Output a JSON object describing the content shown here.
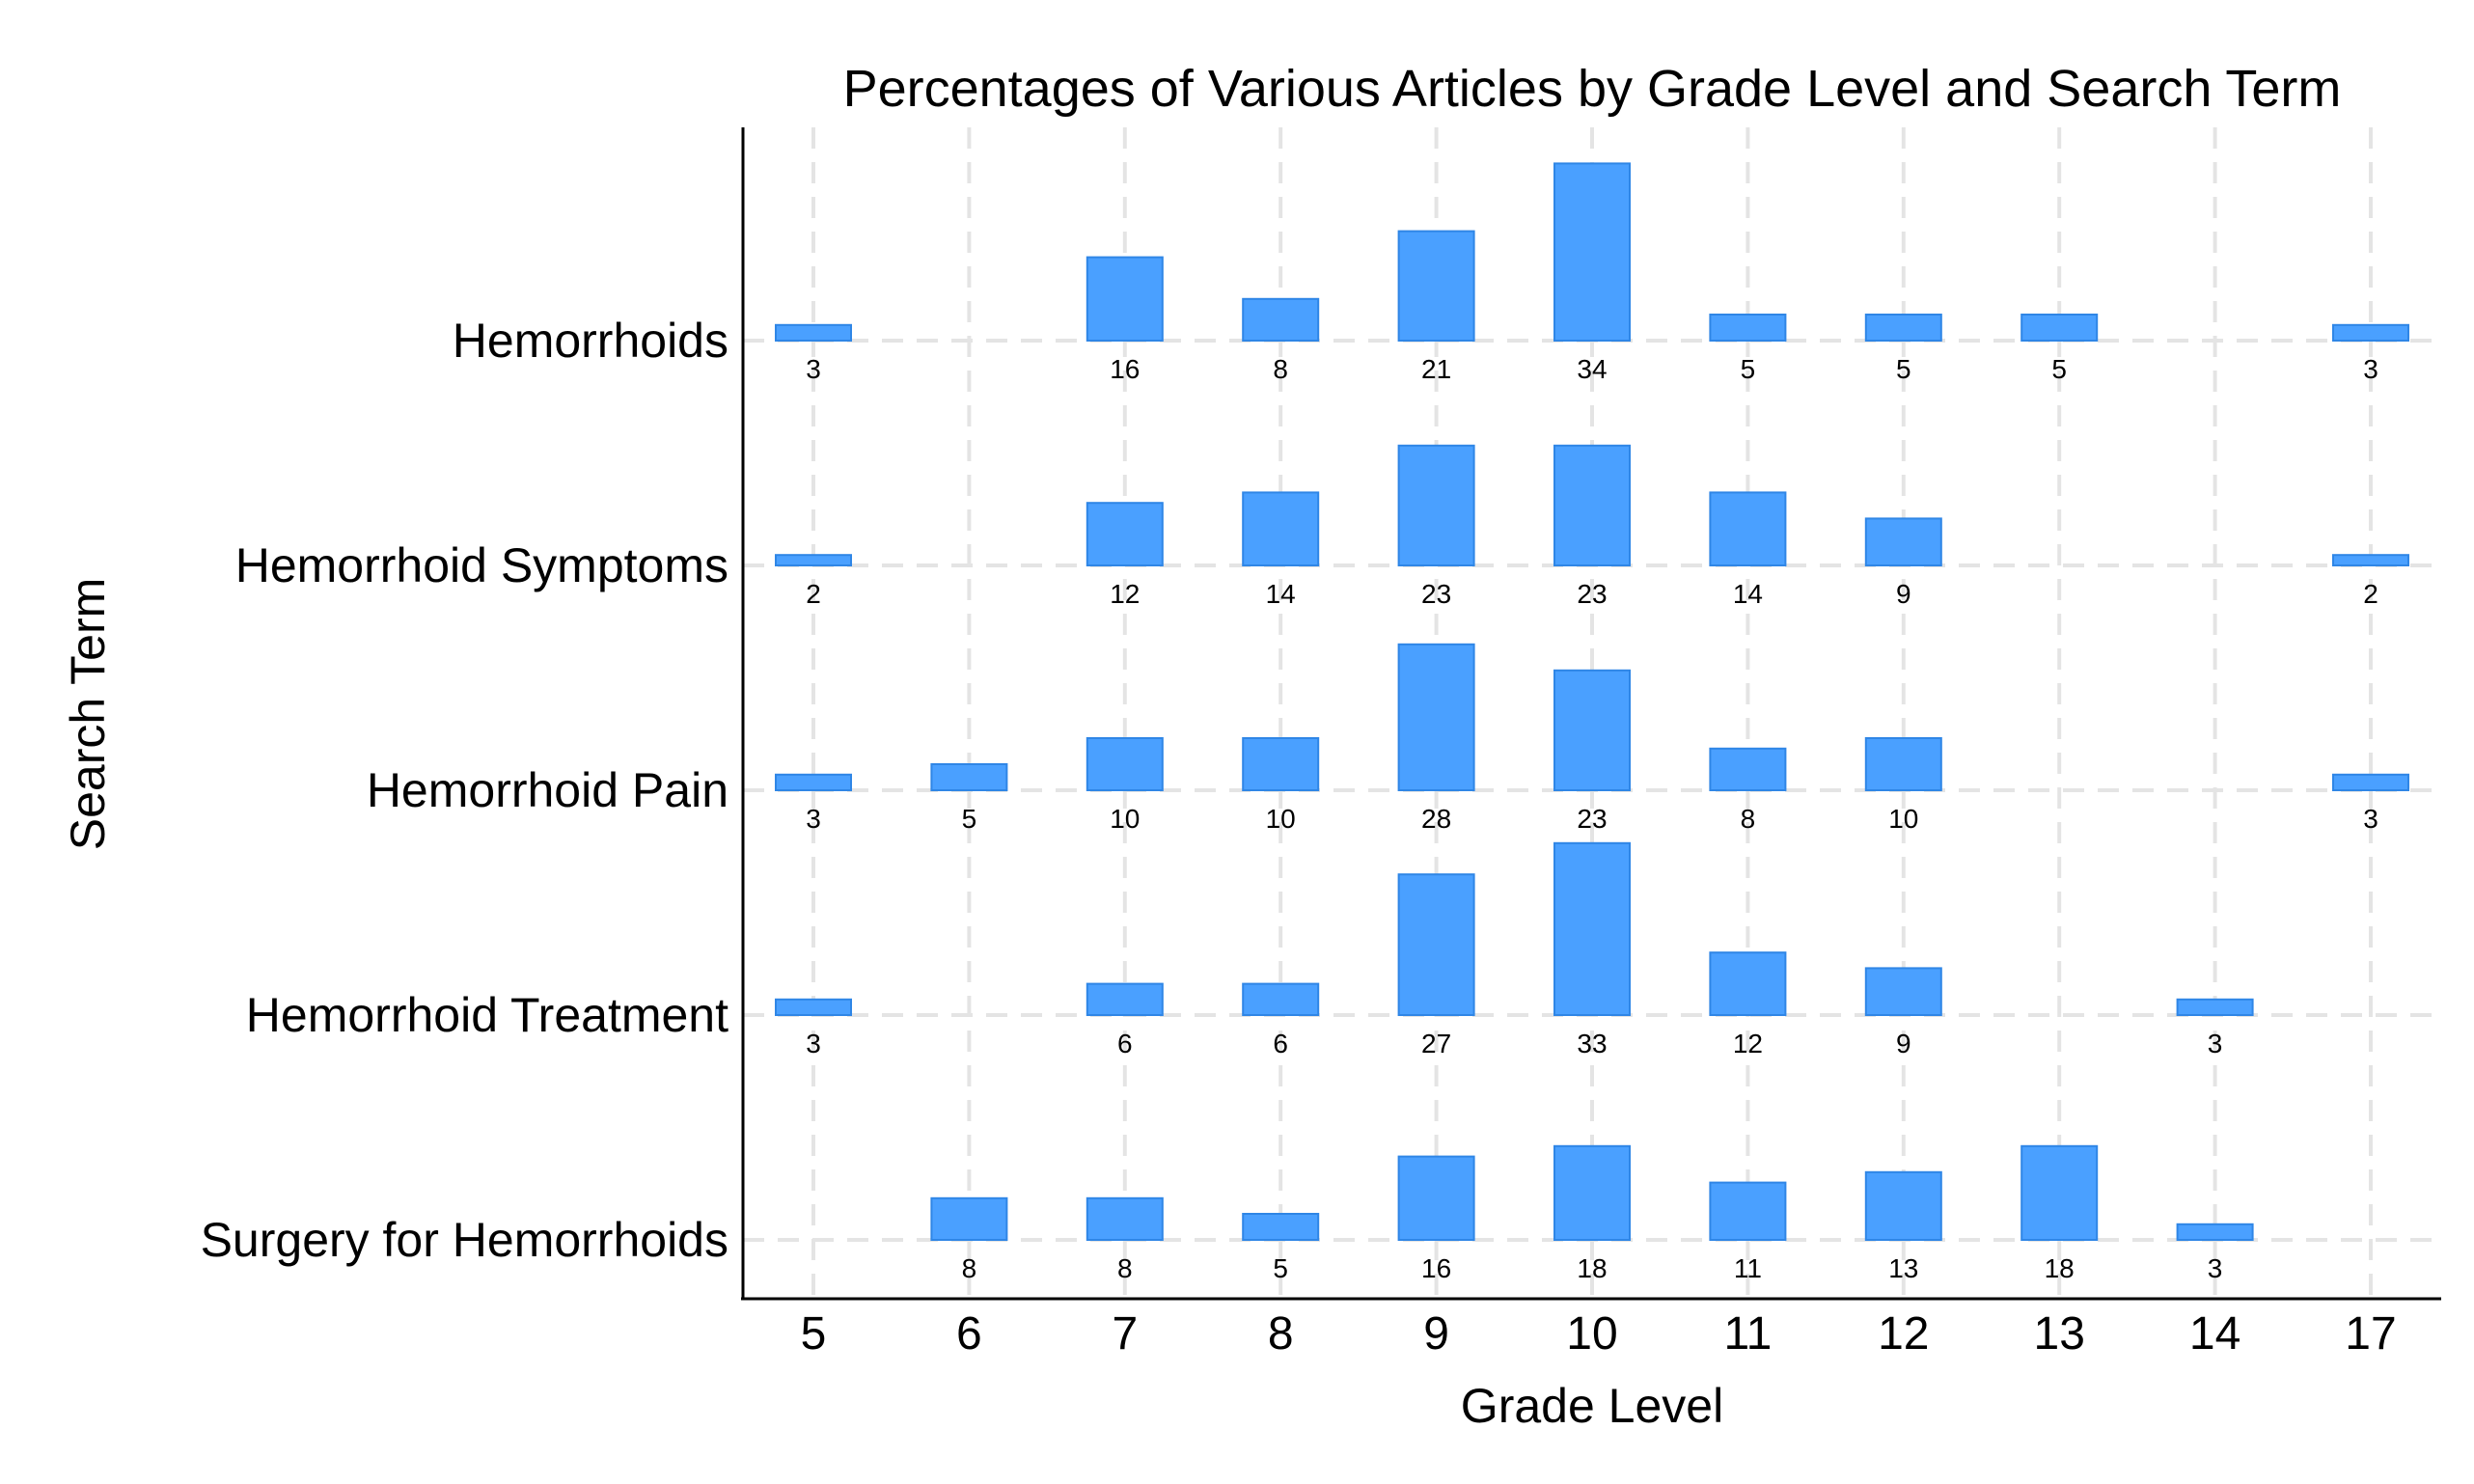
{
  "chart_data": {
    "type": "bar",
    "title": "Percentages of Various Articles by Grade Level and Search Term",
    "xlabel": "Grade Level",
    "ylabel": "Search Term",
    "categories": [
      "5",
      "6",
      "7",
      "8",
      "9",
      "10",
      "11",
      "12",
      "13",
      "14",
      "17"
    ],
    "grid": true,
    "bar_color": "#4aa0ff",
    "bar_edge_color": "#2f86e6",
    "series": [
      {
        "name": "Hemorrhoids",
        "values": [
          3,
          null,
          16,
          8,
          21,
          34,
          5,
          5,
          5,
          null,
          3
        ]
      },
      {
        "name": "Hemorrhoid Symptoms",
        "values": [
          2,
          null,
          12,
          14,
          23,
          23,
          14,
          9,
          null,
          null,
          2
        ]
      },
      {
        "name": "Hemorrhoid Pain",
        "values": [
          3,
          5,
          10,
          10,
          28,
          23,
          8,
          10,
          null,
          null,
          3
        ]
      },
      {
        "name": "Hemorrhoid Treatment",
        "values": [
          3,
          null,
          6,
          6,
          27,
          33,
          12,
          9,
          null,
          3,
          null
        ]
      },
      {
        "name": "Surgery for Hemorrhoids",
        "values": [
          null,
          8,
          8,
          5,
          16,
          18,
          11,
          13,
          18,
          3,
          null
        ]
      }
    ]
  }
}
